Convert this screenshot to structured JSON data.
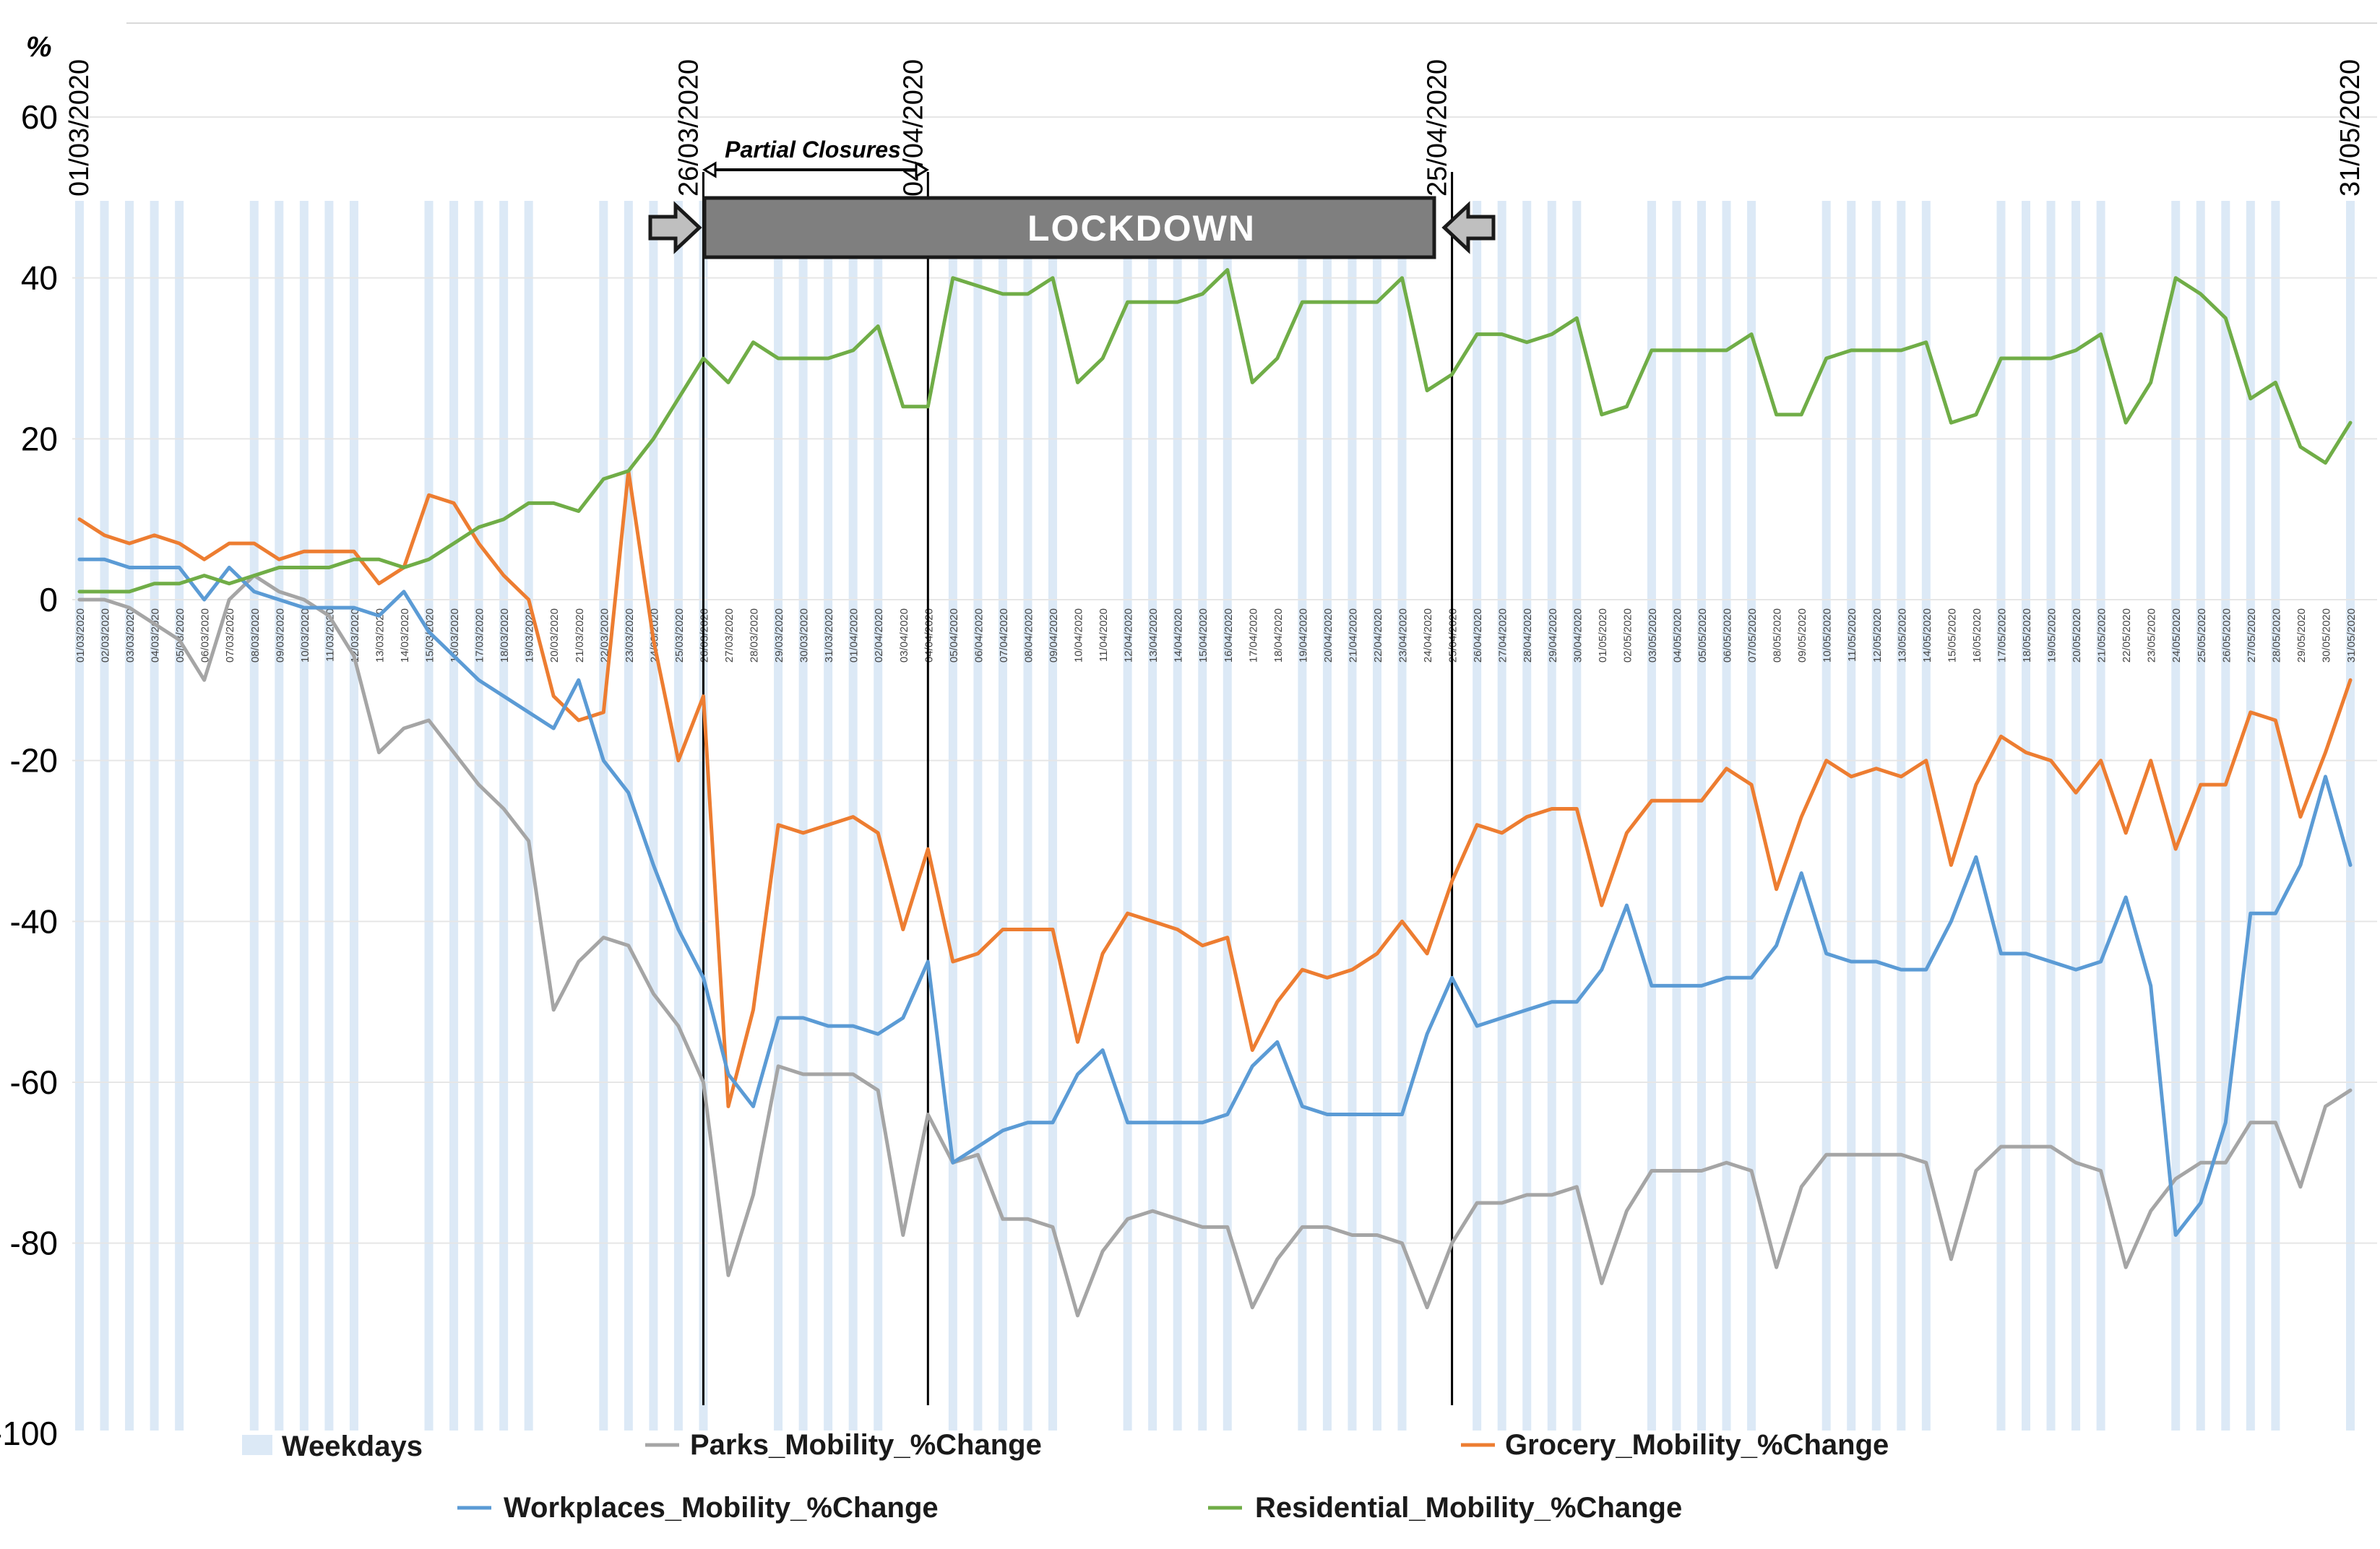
{
  "chart_data": {
    "type": "line",
    "title": "",
    "ylabel": "%",
    "xlabel": "",
    "ylim": [
      -100,
      60
    ],
    "yticks": [
      60,
      40,
      20,
      0,
      -20,
      -40,
      -60,
      -80,
      -100
    ],
    "grid": true,
    "legend_position": "bottom",
    "dates": [
      "01/03/2020",
      "02/03/2020",
      "03/03/2020",
      "04/03/2020",
      "05/03/2020",
      "06/03/2020",
      "07/03/2020",
      "08/03/2020",
      "09/03/2020",
      "10/03/2020",
      "11/03/2020",
      "12/03/2020",
      "13/03/2020",
      "14/03/2020",
      "15/03/2020",
      "16/03/2020",
      "17/03/2020",
      "18/03/2020",
      "19/03/2020",
      "20/03/2020",
      "21/03/2020",
      "22/03/2020",
      "23/03/2020",
      "24/03/2020",
      "25/03/2020",
      "26/03/2020",
      "27/03/2020",
      "28/03/2020",
      "29/03/2020",
      "30/03/2020",
      "31/03/2020",
      "01/04/2020",
      "02/04/2020",
      "03/04/2020",
      "04/04/2020",
      "05/04/2020",
      "06/04/2020",
      "07/04/2020",
      "08/04/2020",
      "09/04/2020",
      "10/04/2020",
      "11/04/2020",
      "12/04/2020",
      "13/04/2020",
      "14/04/2020",
      "15/04/2020",
      "16/04/2020",
      "17/04/2020",
      "18/04/2020",
      "19/04/2020",
      "20/04/2020",
      "21/04/2020",
      "22/04/2020",
      "23/04/2020",
      "24/04/2020",
      "25/04/2020",
      "26/04/2020",
      "27/04/2020",
      "28/04/2020",
      "29/04/2020",
      "30/04/2020",
      "01/05/2020",
      "02/05/2020",
      "03/05/2020",
      "04/05/2020",
      "05/05/2020",
      "06/05/2020",
      "07/05/2020",
      "08/05/2020",
      "09/05/2020",
      "10/05/2020",
      "11/05/2020",
      "12/05/2020",
      "13/05/2020",
      "14/05/2020",
      "15/05/2020",
      "16/05/2020",
      "17/05/2020",
      "18/05/2020",
      "19/05/2020",
      "20/05/2020",
      "21/05/2020",
      "22/05/2020",
      "23/05/2020",
      "24/05/2020",
      "25/05/2020",
      "26/05/2020",
      "27/05/2020",
      "28/05/2020",
      "29/05/2020",
      "30/05/2020",
      "31/05/2020"
    ],
    "weekday_bands": [
      [
        0,
        4
      ],
      [
        7,
        11
      ],
      [
        14,
        18
      ],
      [
        21,
        25
      ],
      [
        28,
        32
      ],
      [
        35,
        39
      ],
      [
        42,
        46
      ],
      [
        49,
        53
      ],
      [
        56,
        60
      ],
      [
        63,
        67
      ],
      [
        70,
        74
      ],
      [
        77,
        81
      ],
      [
        84,
        88
      ],
      [
        91,
        91
      ]
    ],
    "series": [
      {
        "name": "Parks_Mobility_%Change",
        "color": "#a5a5a5",
        "values": [
          0,
          0,
          -1,
          -3,
          -5,
          -10,
          0,
          3,
          1,
          0,
          -2,
          -7,
          -19,
          -16,
          -15,
          -19,
          -23,
          -26,
          -30,
          -51,
          -45,
          -42,
          -43,
          -49,
          -53,
          -60,
          -84,
          -74,
          -58,
          -59,
          -59,
          -59,
          -61,
          -79,
          -64,
          -70,
          -69,
          -77,
          -77,
          -78,
          -89,
          -81,
          -77,
          -76,
          -77,
          -78,
          -78,
          -88,
          -82,
          -78,
          -78,
          -79,
          -79,
          -80,
          -88,
          -80,
          -75,
          -75,
          -74,
          -74,
          -73,
          -85,
          -76,
          -71,
          -71,
          -71,
          -70,
          -71,
          -83,
          -73,
          -69,
          -69,
          -69,
          -69,
          -70,
          -82,
          -71,
          -68,
          -68,
          -68,
          -70,
          -71,
          -83,
          -76,
          -72,
          -70,
          -70,
          -65,
          -65,
          -73,
          -63,
          -61
        ]
      },
      {
        "name": "Grocery_Mobility_%Change",
        "color": "#ed7d31",
        "values": [
          10,
          8,
          7,
          8,
          7,
          5,
          7,
          7,
          5,
          6,
          6,
          6,
          2,
          4,
          13,
          12,
          7,
          3,
          0,
          -12,
          -15,
          -14,
          16,
          -5,
          -20,
          -12,
          -63,
          -51,
          -28,
          -29,
          -28,
          -27,
          -29,
          -41,
          -31,
          -45,
          -44,
          -41,
          -41,
          -41,
          -55,
          -44,
          -39,
          -40,
          -41,
          -43,
          -42,
          -56,
          -50,
          -46,
          -47,
          -46,
          -44,
          -40,
          -44,
          -35,
          -28,
          -29,
          -27,
          -26,
          -26,
          -38,
          -29,
          -25,
          -25,
          -25,
          -21,
          -23,
          -36,
          -27,
          -20,
          -22,
          -21,
          -22,
          -20,
          -33,
          -23,
          -17,
          -19,
          -20,
          -24,
          -20,
          -29,
          -20,
          -31,
          -23,
          -23,
          -14,
          -15,
          -27,
          -19,
          -10
        ]
      },
      {
        "name": "Workplaces_Mobility_%Change",
        "color": "#5b9bd5",
        "values": [
          5,
          5,
          4,
          4,
          4,
          0,
          4,
          1,
          0,
          -1,
          -1,
          -1,
          -2,
          1,
          -4,
          -7,
          -10,
          -12,
          -14,
          -16,
          -10,
          -20,
          -24,
          -33,
          -41,
          -47,
          -59,
          -63,
          -52,
          -52,
          -53,
          -53,
          -54,
          -52,
          -45,
          -70,
          -68,
          -66,
          -65,
          -65,
          -59,
          -56,
          -65,
          -65,
          -65,
          -65,
          -64,
          -58,
          -55,
          -63,
          -64,
          -64,
          -64,
          -64,
          -54,
          -47,
          -53,
          -52,
          -51,
          -50,
          -50,
          -46,
          -38,
          -48,
          -48,
          -48,
          -47,
          -47,
          -43,
          -34,
          -44,
          -45,
          -45,
          -46,
          -46,
          -40,
          -32,
          -44,
          -44,
          -45,
          -46,
          -45,
          -37,
          -48,
          -79,
          -75,
          -65,
          -39,
          -39,
          -33,
          -22,
          -33
        ]
      },
      {
        "name": "Residential_Mobility_%Change",
        "color": "#70ad47",
        "values": [
          1,
          1,
          1,
          2,
          2,
          3,
          2,
          3,
          4,
          4,
          4,
          5,
          5,
          4,
          5,
          7,
          9,
          10,
          12,
          12,
          11,
          15,
          16,
          20,
          25,
          30,
          27,
          32,
          30,
          30,
          30,
          31,
          34,
          24,
          24,
          40,
          39,
          38,
          38,
          40,
          27,
          30,
          37,
          37,
          37,
          38,
          41,
          27,
          30,
          37,
          37,
          37,
          37,
          40,
          26,
          28,
          33,
          33,
          32,
          33,
          35,
          23,
          24,
          31,
          31,
          31,
          31,
          33,
          23,
          23,
          30,
          31,
          31,
          31,
          32,
          22,
          23,
          30,
          30,
          30,
          31,
          33,
          22,
          27,
          40,
          38,
          35,
          25,
          27,
          19,
          17,
          22
        ]
      }
    ],
    "annotations": {
      "date_markers": [
        "01/03/2020",
        "26/03/2020",
        "04/04/2020",
        "25/04/2020",
        "31/05/2020"
      ],
      "lockdown_label": "LOCKDOWN",
      "partial_label": "Partial Closures"
    }
  },
  "legend": {
    "weekdays": "Weekdays",
    "parks": "Parks_Mobility_%Change",
    "grocery": "Grocery_Mobility_%Change",
    "workplaces": "Workplaces_Mobility_%Change",
    "residential": "Residential_Mobility_%Change"
  },
  "colors": {
    "band": "#dce9f6",
    "grid": "#e6e6e6",
    "lockdown_bar": "#7f7f7f"
  }
}
